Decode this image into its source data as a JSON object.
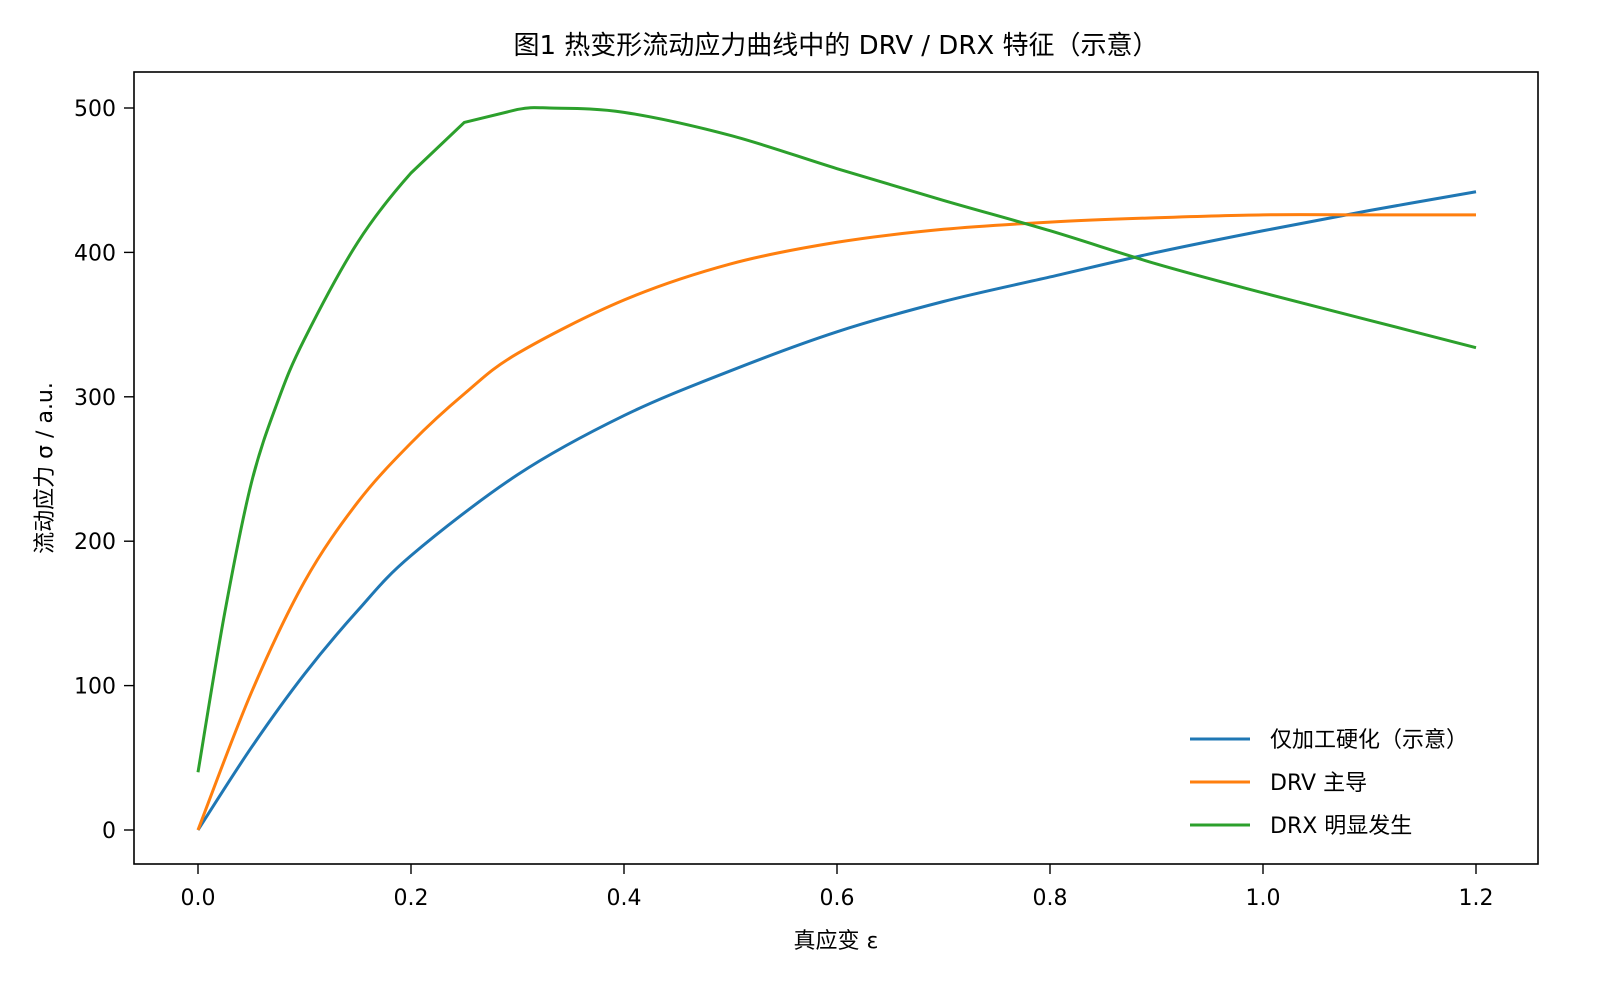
{
  "chart_data": {
    "type": "line",
    "title": "图1  热变形流动应力曲线中的 DRV / DRX 特征（示意）",
    "xlabel": "真应变 ε",
    "ylabel": "流动应力 σ / a.u.",
    "xlim": [
      -0.06,
      1.26
    ],
    "ylim": [
      -25,
      525
    ],
    "xticks": [
      "0.0",
      "0.2",
      "0.4",
      "0.6",
      "0.8",
      "1.0",
      "1.2"
    ],
    "xtick_values": [
      0.0,
      0.2,
      0.4,
      0.6,
      0.8,
      1.0,
      1.2
    ],
    "yticks": [
      "0",
      "100",
      "200",
      "300",
      "400",
      "500"
    ],
    "ytick_values": [
      0,
      100,
      200,
      300,
      400,
      500
    ],
    "grid": false,
    "legend_position": "lower right",
    "series": [
      {
        "name": "仅加工硬化（示意）",
        "color": "#1f77b4",
        "x": [
          0.0,
          0.05,
          0.1,
          0.15,
          0.2,
          0.3,
          0.4,
          0.5,
          0.6,
          0.7,
          0.8,
          0.9,
          1.0,
          1.1,
          1.2
        ],
        "y": [
          0,
          57,
          108,
          152,
          190,
          246,
          287,
          318,
          345,
          366,
          383,
          400,
          415,
          429,
          442
        ]
      },
      {
        "name": "DRV 主导",
        "color": "#ff7f0e",
        "x": [
          0.0,
          0.05,
          0.1,
          0.15,
          0.2,
          0.25,
          0.3,
          0.4,
          0.5,
          0.6,
          0.7,
          0.8,
          0.9,
          1.0,
          1.1,
          1.2
        ],
        "y": [
          0,
          95,
          172,
          227,
          268,
          302,
          330,
          367,
          392,
          407,
          416,
          421,
          424,
          426,
          426,
          426
        ]
      },
      {
        "name": "DRX 明显发生",
        "color": "#2ca02c",
        "x": [
          0.0,
          0.025,
          0.05,
          0.075,
          0.1,
          0.15,
          0.2,
          0.25,
          0.3,
          0.33,
          0.4,
          0.5,
          0.6,
          0.7,
          0.8,
          0.9,
          1.0,
          1.1,
          1.2
        ],
        "y": [
          40,
          150,
          240,
          297,
          340,
          407,
          455,
          490,
          499,
          500,
          497,
          481,
          458,
          436,
          415,
          392,
          372,
          353,
          334
        ]
      }
    ]
  }
}
